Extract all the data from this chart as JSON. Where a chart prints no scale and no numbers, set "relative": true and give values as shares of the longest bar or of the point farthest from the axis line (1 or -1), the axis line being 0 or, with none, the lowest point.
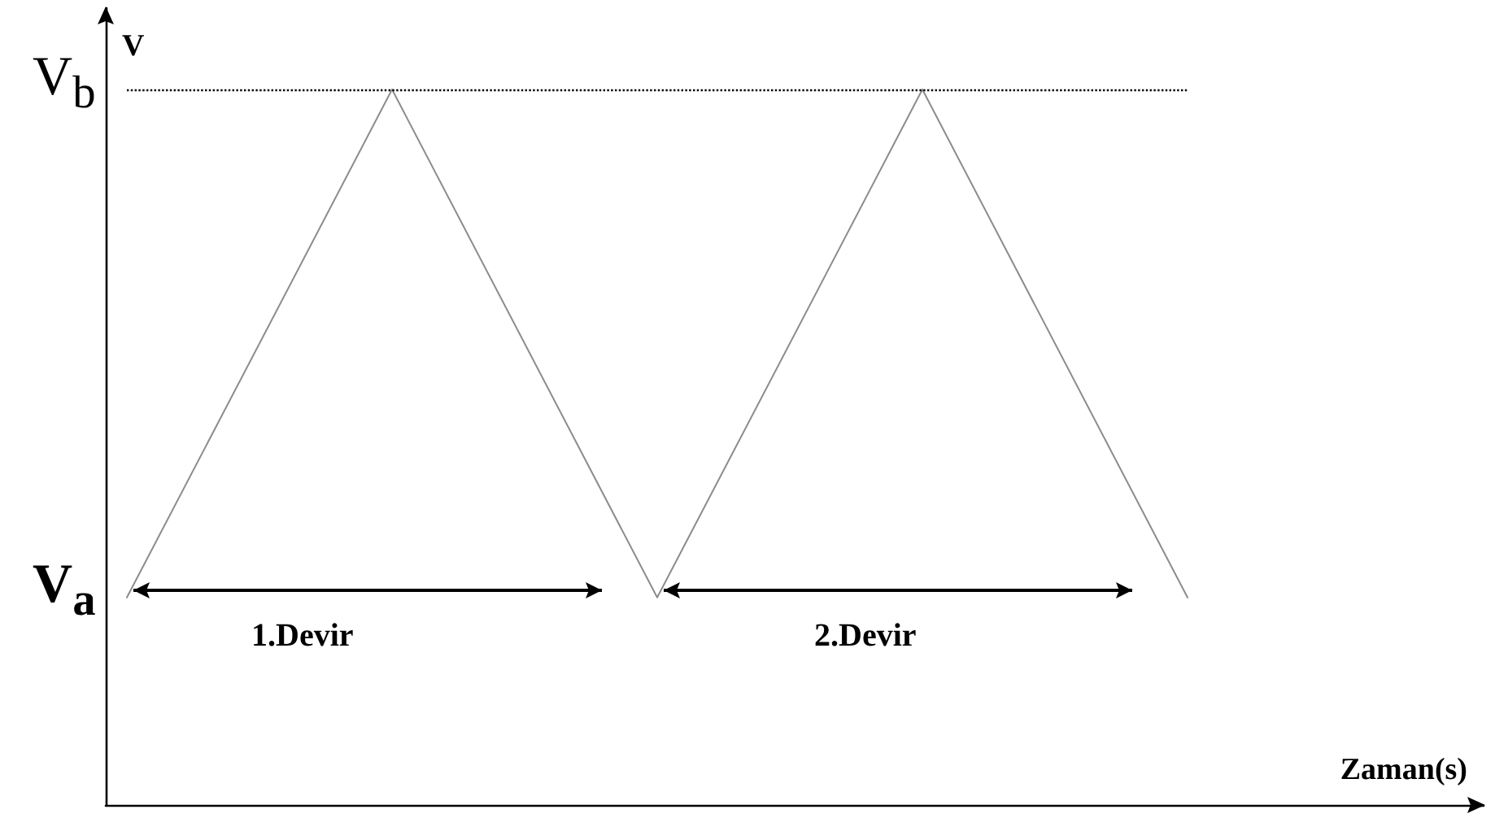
{
  "chart_data": {
    "type": "line",
    "relative": true,
    "xlabel": "Zaman(s)",
    "ylabel": "V",
    "categories": [
      null,
      null,
      null,
      null,
      null
    ],
    "series": [
      {
        "color": "#8c8c8c",
        "values": [
          0.29,
          1,
          0.29,
          1,
          0.29
        ]
      }
    ],
    "marker": "none",
    "line_style": "solid",
    "ref_lines": [
      {
        "axis": "y",
        "value": 1,
        "label": "V$_{b}$",
        "color": "#000000",
        "line_style": "dotted"
      }
    ],
    "annotations": [
      "V$_{a}$",
      "1.Devir",
      "2.Devir"
    ]
  }
}
